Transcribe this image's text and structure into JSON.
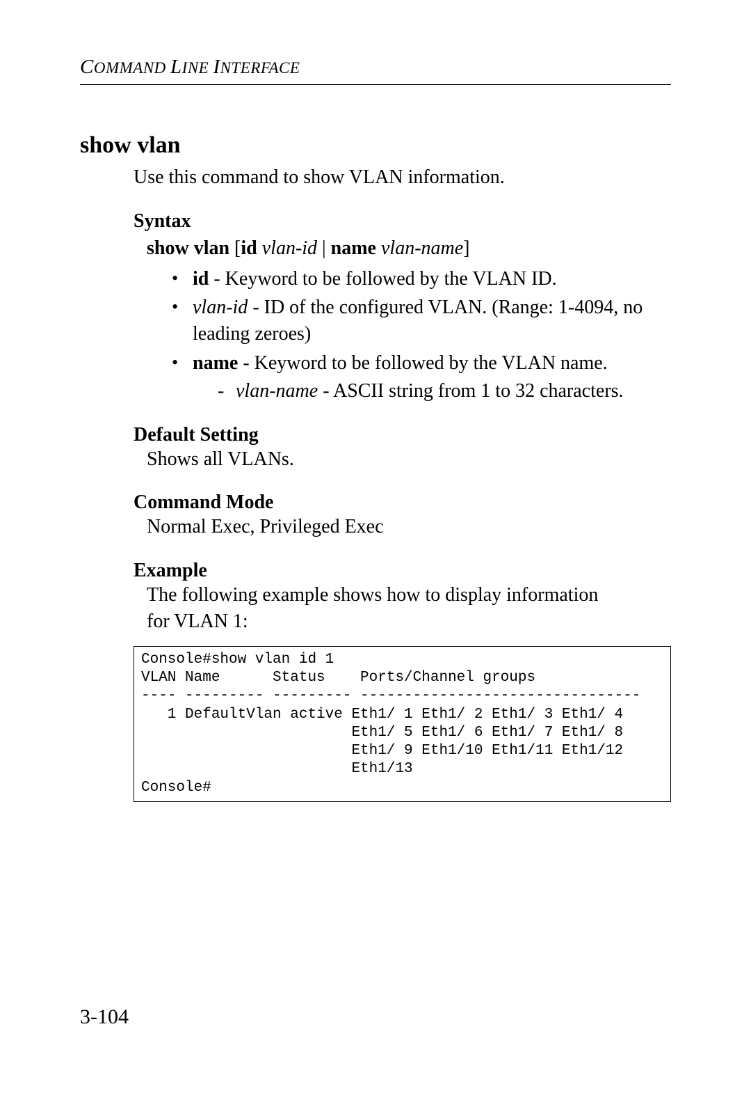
{
  "header": {
    "running_head_1": "C",
    "running_head_2": "OMMAND ",
    "running_head_3": "L",
    "running_head_4": "INE ",
    "running_head_5": "I",
    "running_head_6": "NTERFACE"
  },
  "section": {
    "title": "show vlan",
    "intro": "Use this command to show VLAN information."
  },
  "syntax": {
    "heading": "Syntax",
    "cmd_bold_1": "show vlan",
    "bracket_open": " [",
    "kw_id": "id",
    "sp1": " ",
    "arg_vlan_id": "vlan-id",
    "pipe": " | ",
    "kw_name": "name",
    "sp2": " ",
    "arg_vlan_name": "vlan-name",
    "bracket_close": "]",
    "bullets": [
      {
        "bold": "id",
        "rest": " - Keyword to be followed by the VLAN ID."
      },
      {
        "italic": "vlan-id",
        "rest": " - ID of the configured VLAN. (Range: 1-4094, no leading zeroes)"
      },
      {
        "bold": "name",
        "rest": " - Keyword to be followed by the VLAN name.",
        "sub": {
          "italic": "vlan-name",
          "rest": " - ASCII string from 1 to 32 characters."
        }
      }
    ]
  },
  "default_setting": {
    "heading": "Default Setting",
    "text": "Shows all VLANs."
  },
  "command_mode": {
    "heading": "Command Mode",
    "text": "Normal Exec, Privileged Exec"
  },
  "example": {
    "heading": "Example",
    "text": "The following example shows how to display information for VLAN 1:",
    "code": "Console#show vlan id 1\nVLAN Name      Status    Ports/Channel groups\n---- --------- --------- --------------------------------\n   1 DefaultVlan active Eth1/ 1 Eth1/ 2 Eth1/ 3 Eth1/ 4\n                        Eth1/ 5 Eth1/ 6 Eth1/ 7 Eth1/ 8\n                        Eth1/ 9 Eth1/10 Eth1/11 Eth1/12\n                        Eth1/13\nConsole#"
  },
  "page_number": "3-104",
  "typography": {
    "body_font_size_pt": 21,
    "heading_font_size_pt": 25,
    "code_font_size_pt": 16,
    "text_color": "#000000",
    "background_color": "#ffffff",
    "rule_color": "#000000"
  }
}
